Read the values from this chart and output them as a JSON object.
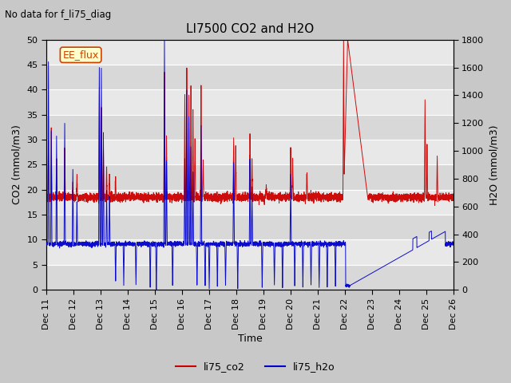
{
  "title": "LI7500 CO2 and H2O",
  "no_data_text": "No data for f_li75_diag",
  "xlabel": "Time",
  "ylabel_left": "CO2 (mmol/m3)",
  "ylabel_right": "H2O (mmol/m3)",
  "ylim_left": [
    0,
    50
  ],
  "ylim_right": [
    0,
    1800
  ],
  "x_start": 11,
  "x_end": 26,
  "x_ticks": [
    11,
    12,
    13,
    14,
    15,
    16,
    17,
    18,
    19,
    20,
    21,
    22,
    23,
    24,
    25,
    26
  ],
  "x_tick_labels": [
    "Dec 11",
    "Dec 12",
    "Dec 13",
    "Dec 14",
    "Dec 15",
    "Dec 16",
    "Dec 17",
    "Dec 18",
    "Dec 19",
    "Dec 20",
    "Dec 21",
    "Dec 22",
    "Dec 23",
    "Dec 24",
    "Dec 25",
    "Dec 26"
  ],
  "color_co2": "#cc0000",
  "color_h2o": "#0000cc",
  "legend_box_label": "EE_flux",
  "legend_entries": [
    "li75_co2",
    "li75_h2o"
  ],
  "fig_bg_color": "#c8c8c8",
  "plot_bg_color": "#e8e8e8",
  "grid_color": "#ffffff",
  "alt_band_color": "#d8d8d8"
}
